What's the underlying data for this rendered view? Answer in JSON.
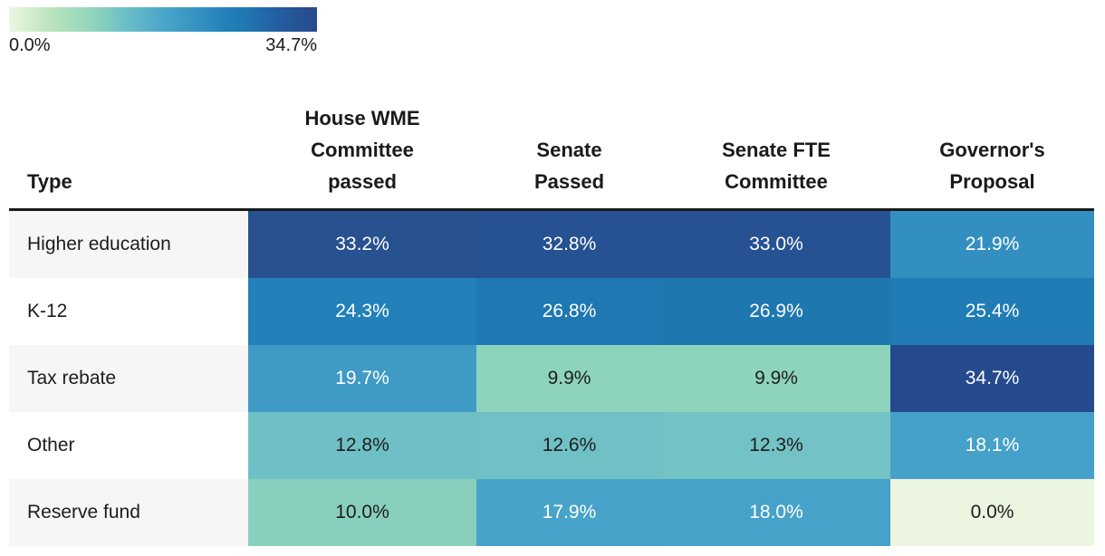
{
  "legend": {
    "min_label": "0.0%",
    "max_label": "34.7%",
    "gradient_stops": [
      "#ecf6e1 0%",
      "#b9e3bc 14%",
      "#8ed4bd 28%",
      "#6fc0c6 37%",
      "#4aa6c9 50%",
      "#338fc0 63%",
      "#2380b8 70%",
      "#1f78b1 77%",
      "#245ca1 88%",
      "#265192 95%",
      "#254a8d 100%"
    ]
  },
  "table": {
    "type_header": "Type",
    "column_headers": [
      "House WME\nCommittee\npassed",
      "Senate\nPassed",
      "Senate FTE\nCommittee",
      "Governor's\nProposal"
    ],
    "rows": [
      {
        "label": "Higher education",
        "cells": [
          {
            "text": "33.2%",
            "bg": "#27518f",
            "fg": "#ffffff"
          },
          {
            "text": "32.8%",
            "bg": "#265192",
            "fg": "#ffffff"
          },
          {
            "text": "33.0%",
            "bg": "#265192",
            "fg": "#ffffff"
          },
          {
            "text": "21.9%",
            "bg": "#338fc0",
            "fg": "#ffffff"
          }
        ]
      },
      {
        "label": "K-12",
        "cells": [
          {
            "text": "24.3%",
            "bg": "#2380b8",
            "fg": "#ffffff"
          },
          {
            "text": "26.8%",
            "bg": "#1f78b1",
            "fg": "#ffffff"
          },
          {
            "text": "26.9%",
            "bg": "#1f77b0",
            "fg": "#ffffff"
          },
          {
            "text": "25.4%",
            "bg": "#217cb5",
            "fg": "#ffffff"
          }
        ]
      },
      {
        "label": "Tax rebate",
        "cells": [
          {
            "text": "19.7%",
            "bg": "#3f9ac5",
            "fg": "#ffffff"
          },
          {
            "text": "9.9%",
            "bg": "#8ed4bd",
            "fg": "#1d1d1d"
          },
          {
            "text": "9.9%",
            "bg": "#8ed4bd",
            "fg": "#1d1d1d"
          },
          {
            "text": "34.7%",
            "bg": "#254a8d",
            "fg": "#ffffff"
          }
        ]
      },
      {
        "label": "Other",
        "cells": [
          {
            "text": "12.8%",
            "bg": "#6fc0c6",
            "fg": "#1d1d1d"
          },
          {
            "text": "12.6%",
            "bg": "#70c1c6",
            "fg": "#1d1d1d"
          },
          {
            "text": "12.3%",
            "bg": "#73c3c6",
            "fg": "#1d1d1d"
          },
          {
            "text": "18.1%",
            "bg": "#45a1c9",
            "fg": "#ffffff"
          }
        ]
      },
      {
        "label": "Reserve fund",
        "cells": [
          {
            "text": "10.0%",
            "bg": "#89cfbd",
            "fg": "#1d1d1d"
          },
          {
            "text": "17.9%",
            "bg": "#47a3c9",
            "fg": "#ffffff"
          },
          {
            "text": "18.0%",
            "bg": "#46a2c9",
            "fg": "#ffffff"
          },
          {
            "text": "0.0%",
            "bg": "#ebf5e0",
            "fg": "#1d1d1d"
          }
        ]
      }
    ]
  },
  "chart_data": {
    "type": "heatmap",
    "title": "",
    "columns": [
      "House WME Committee passed",
      "Senate Passed",
      "Senate FTE Committee",
      "Governor's Proposal"
    ],
    "rows": [
      "Higher education",
      "K-12",
      "Tax rebate",
      "Other",
      "Reserve fund"
    ],
    "values_percent": [
      [
        33.2,
        32.8,
        33.0,
        21.9
      ],
      [
        24.3,
        26.8,
        26.9,
        25.4
      ],
      [
        19.7,
        9.9,
        9.9,
        34.7
      ],
      [
        12.8,
        12.6,
        12.3,
        18.1
      ],
      [
        10.0,
        17.9,
        18.0,
        0.0
      ]
    ],
    "color_scale": {
      "min": 0.0,
      "max": 34.7,
      "min_label": "0.0%",
      "max_label": "34.7%",
      "min_color": "#ecf6e1",
      "max_color": "#254a8d",
      "palette": "green-to-blue sequential"
    },
    "legend_position": "top-left",
    "grid": false
  }
}
